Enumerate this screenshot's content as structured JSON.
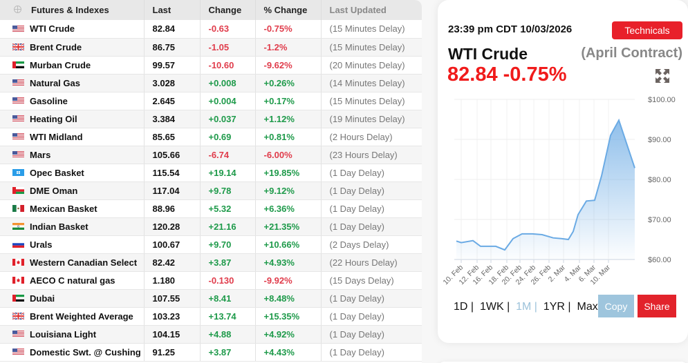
{
  "table": {
    "headers": {
      "name": "Futures & Indexes",
      "last": "Last",
      "change": "Change",
      "pct_change": "% Change",
      "updated": "Last Updated"
    },
    "rows": [
      {
        "flag": "us",
        "name": "WTI Crude",
        "last": "82.84",
        "change": "-0.63",
        "pct": "-0.75%",
        "updated": "(15 Minutes Delay)"
      },
      {
        "flag": "uk",
        "name": "Brent Crude",
        "last": "86.75",
        "change": "-1.05",
        "pct": "-1.2%",
        "updated": "(15 Minutes Delay)"
      },
      {
        "flag": "ae",
        "name": "Murban Crude",
        "last": "99.57",
        "change": "-10.60",
        "pct": "-9.62%",
        "updated": "(20 Minutes Delay)"
      },
      {
        "flag": "us",
        "name": "Natural Gas",
        "last": "3.028",
        "change": "+0.008",
        "pct": "+0.26%",
        "updated": "(14 Minutes Delay)"
      },
      {
        "flag": "us",
        "name": "Gasoline",
        "last": "2.645",
        "change": "+0.004",
        "pct": "+0.17%",
        "updated": "(15 Minutes Delay)"
      },
      {
        "flag": "us",
        "name": "Heating Oil",
        "last": "3.384",
        "change": "+0.037",
        "pct": "+1.12%",
        "updated": "(19 Minutes Delay)"
      },
      {
        "flag": "us",
        "name": "WTI Midland",
        "last": "85.65",
        "change": "+0.69",
        "pct": "+0.81%",
        "updated": "(2 Hours Delay)"
      },
      {
        "flag": "us",
        "name": "Mars",
        "last": "105.66",
        "change": "-6.74",
        "pct": "-6.00%",
        "updated": "(23 Hours Delay)"
      },
      {
        "flag": "opec",
        "name": "Opec Basket",
        "last": "115.54",
        "change": "+19.14",
        "pct": "+19.85%",
        "updated": "(1 Day Delay)"
      },
      {
        "flag": "om",
        "name": "DME Oman",
        "last": "117.04",
        "change": "+9.78",
        "pct": "+9.12%",
        "updated": "(1 Day Delay)"
      },
      {
        "flag": "mx",
        "name": "Mexican Basket",
        "last": "88.96",
        "change": "+5.32",
        "pct": "+6.36%",
        "updated": "(1 Day Delay)"
      },
      {
        "flag": "in",
        "name": "Indian Basket",
        "last": "120.28",
        "change": "+21.16",
        "pct": "+21.35%",
        "updated": "(1 Day Delay)"
      },
      {
        "flag": "ru",
        "name": "Urals",
        "last": "100.67",
        "change": "+9.70",
        "pct": "+10.66%",
        "updated": "(2 Days Delay)"
      },
      {
        "flag": "ca",
        "name": "Western Canadian Select",
        "last": "82.42",
        "change": "+3.87",
        "pct": "+4.93%",
        "updated": "(22 Hours Delay)"
      },
      {
        "flag": "ca",
        "name": "AECO C natural gas",
        "last": "1.180",
        "change": "-0.130",
        "pct": "-9.92%",
        "updated": "(15 Days Delay)"
      },
      {
        "flag": "ae",
        "name": "Dubai",
        "last": "107.55",
        "change": "+8.41",
        "pct": "+8.48%",
        "updated": "(1 Day Delay)"
      },
      {
        "flag": "uk",
        "name": "Brent Weighted Average",
        "last": "103.23",
        "change": "+13.74",
        "pct": "+15.35%",
        "updated": "(1 Day Delay)"
      },
      {
        "flag": "us",
        "name": "Louisiana Light",
        "last": "104.15",
        "change": "+4.88",
        "pct": "+4.92%",
        "updated": "(1 Day Delay)"
      },
      {
        "flag": "us",
        "name": "Domestic Swt. @ Cushing",
        "last": "91.25",
        "change": "+3.87",
        "pct": "+4.43%",
        "updated": "(1 Day Delay)"
      }
    ]
  },
  "panel": {
    "timestamp": "23:39 pm CDT 10/03/2026",
    "technicals_label": "Technicals",
    "title": "WTI Crude",
    "contract": "(April Contract)",
    "price": "82.84 -0.75%",
    "ranges": [
      "1D",
      "1WK",
      "1M",
      "1YR",
      "Max"
    ],
    "active_range": "1M",
    "copy_label": "Copy",
    "share_label": "Share"
  },
  "colors": {
    "negative": "#e03c4b",
    "positive": "#1e9a4a",
    "price_red": "#f01b1b",
    "accent_red": "#e8202a",
    "copy_blue": "#9ec5dd",
    "line_blue": "#6aaae4"
  },
  "chart_data": {
    "type": "area",
    "title": "WTI Crude (April Contract)",
    "xlabel": "",
    "ylabel": "",
    "ylim": [
      60,
      100
    ],
    "y_ticks": [
      "$60.00",
      "$70.00",
      "$80.00",
      "$90.00",
      "$100.00"
    ],
    "x_ticks": [
      "10. Feb",
      "12. Feb",
      "16. Feb",
      "18. Feb",
      "20. Feb",
      "24. Feb",
      "26. Feb",
      "2. Mar",
      "4. Mar",
      "6. Mar",
      "10. Mar"
    ],
    "grid": true,
    "legend": "none",
    "series": [
      {
        "name": "WTI Crude",
        "x": [
          "9. Feb",
          "10. Feb",
          "11. Feb",
          "12. Feb",
          "13. Feb",
          "16. Feb",
          "17. Feb",
          "18. Feb",
          "19. Feb",
          "20. Feb",
          "23. Feb",
          "24. Feb",
          "25. Feb",
          "26. Feb",
          "27. Feb",
          "2. Mar",
          "3. Mar",
          "4. Mar",
          "5. Mar",
          "6. Mar",
          "9. Mar",
          "10. Mar"
        ],
        "values": [
          64.6,
          64.2,
          64.7,
          63.3,
          63.3,
          63.3,
          62.4,
          65.2,
          66.4,
          66.4,
          66.2,
          65.4,
          65.2,
          65.0,
          67.0,
          71.2,
          74.6,
          74.8,
          80.9,
          91.0,
          94.8,
          82.84
        ]
      }
    ]
  }
}
